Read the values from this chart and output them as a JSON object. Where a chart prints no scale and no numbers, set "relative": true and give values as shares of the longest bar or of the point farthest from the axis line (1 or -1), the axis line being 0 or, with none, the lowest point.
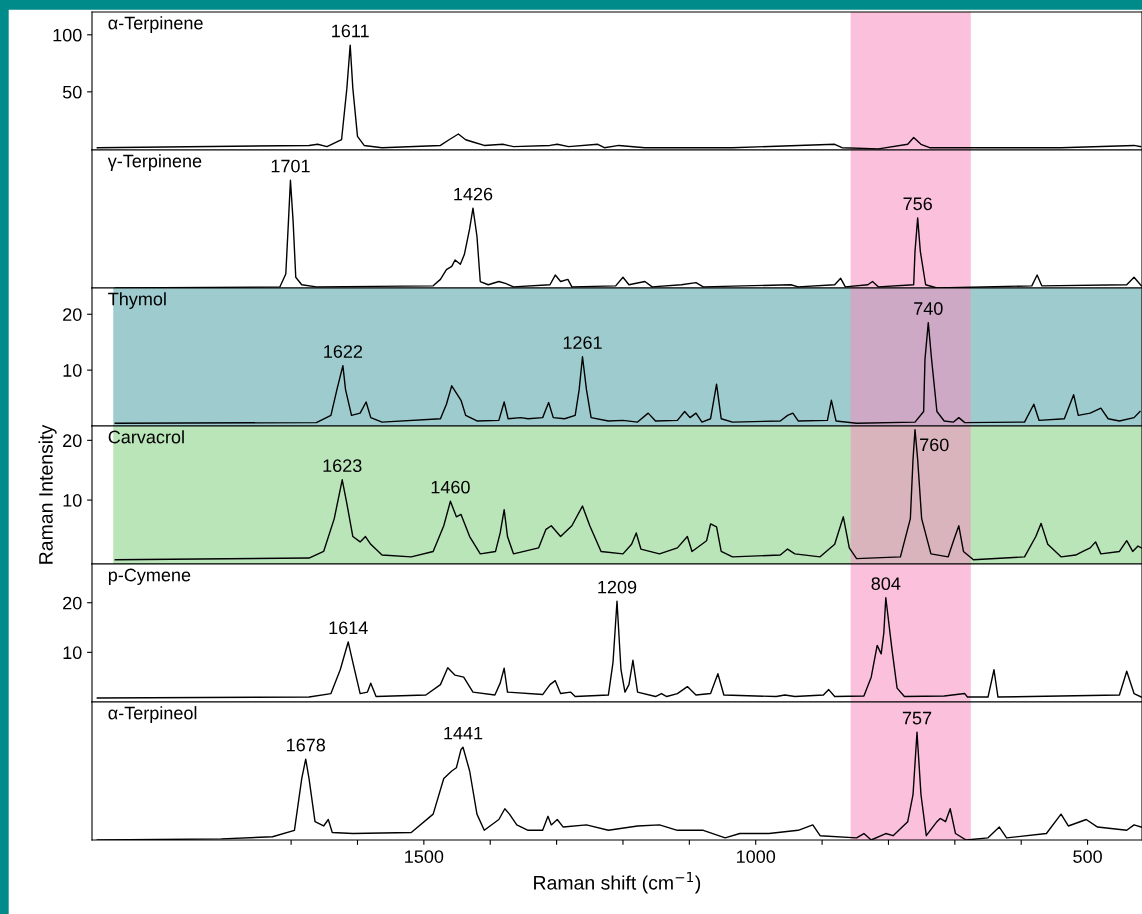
{
  "chart_data": [
    {
      "type": "line",
      "xlim": [
        2000,
        418
      ],
      "ylim": [
        -1,
        120
      ],
      "yticks": [
        50,
        100
      ],
      "tick_labels": "y",
      "series": [
        {
          "name": "α-Terpinene",
          "color": "#000000",
          "x": [
            1992,
            1673,
            1660,
            1646,
            1624,
            1616,
            1611,
            1607,
            1600,
            1590,
            1563,
            1475,
            1462,
            1448,
            1437,
            1426,
            1409,
            1381,
            1365,
            1310,
            1299,
            1282,
            1238,
            1228,
            1206,
            1167,
            1035,
            881,
            870,
            815,
            771,
            762,
            751,
            738,
            650,
            540,
            430,
            420
          ],
          "values": [
            1,
            3,
            4,
            2,
            8,
            53,
            91,
            53,
            11,
            3,
            1,
            3,
            8,
            13,
            8,
            6,
            3,
            4,
            2,
            3,
            4,
            2,
            4,
            1,
            3,
            1,
            1,
            4,
            1,
            0,
            4,
            10,
            4,
            1,
            1,
            1,
            3,
            2
          ]
        }
      ],
      "annotations": [
        {
          "text": "1611",
          "x": 1611,
          "y": 91
        }
      ],
      "bands": [
        {
          "axis": "x",
          "from": 857,
          "to": 676,
          "color": "#f58cbf"
        }
      ]
    },
    {
      "type": "line",
      "relative": true,
      "xlim": [
        2000,
        418
      ],
      "tick_labels": false,
      "series": [
        {
          "name": "γ-Terpinene",
          "color": "#000000",
          "x": [
            1965,
            1717,
            1708,
            1704,
            1701,
            1697,
            1693,
            1684,
            1662,
            1486,
            1475,
            1466,
            1458,
            1453,
            1445,
            1439,
            1431,
            1426,
            1420,
            1415,
            1403,
            1387,
            1376,
            1365,
            1310,
            1302,
            1294,
            1283,
            1277,
            1211,
            1200,
            1191,
            1167,
            1156,
            1112,
            1090,
            1079,
            947,
            936,
            881,
            872,
            865,
            831,
            824,
            815,
            762,
            760,
            756,
            752,
            744,
            727,
            584,
            576,
            569,
            441,
            430,
            419
          ],
          "values": [
            0,
            0.01,
            0.13,
            0.62,
            1,
            0.62,
            0.1,
            0.03,
            0.01,
            0.02,
            0.08,
            0.17,
            0.2,
            0.26,
            0.22,
            0.31,
            0.55,
            0.74,
            0.48,
            0.06,
            0.03,
            0.06,
            0.04,
            0.01,
            0.03,
            0.12,
            0.06,
            0.08,
            0.01,
            0.02,
            0.1,
            0.03,
            0.06,
            0.01,
            0.03,
            0.05,
            0.01,
            0.03,
            0.01,
            0.03,
            0.09,
            0.01,
            0.03,
            0.06,
            0.01,
            0.03,
            0.34,
            0.65,
            0.34,
            0.03,
            0,
            0.02,
            0.12,
            0.02,
            0.03,
            0.1,
            0.02
          ]
        }
      ],
      "annotations": [
        {
          "text": "1701",
          "x": 1701,
          "y": 1
        },
        {
          "text": "1426",
          "x": 1426,
          "y": 0.74
        },
        {
          "text": "756",
          "x": 756,
          "y": 0.65
        }
      ],
      "bands": [
        {
          "axis": "x",
          "from": 857,
          "to": 676,
          "color": "#f58cbf"
        }
      ]
    },
    {
      "type": "line",
      "xlim": [
        2000,
        418
      ],
      "ylim": [
        0,
        24.7
      ],
      "yticks": [
        10,
        20
      ],
      "tick_labels": "y",
      "series": [
        {
          "name": "Thymol",
          "color": "#000000",
          "x": [
            1965,
            1662,
            1640,
            1631,
            1622,
            1618,
            1609,
            1596,
            1587,
            1580,
            1563,
            1475,
            1466,
            1458,
            1451,
            1444,
            1437,
            1420,
            1387,
            1379,
            1373,
            1354,
            1343,
            1321,
            1312,
            1305,
            1288,
            1272,
            1266,
            1261,
            1255,
            1248,
            1222,
            1200,
            1178,
            1162,
            1151,
            1118,
            1107,
            1099,
            1090,
            1081,
            1068,
            1059,
            1052,
            1035,
            963,
            952,
            944,
            936,
            892,
            886,
            879,
            848,
            760,
            747,
            745,
            740,
            735,
            727,
            716,
            702,
            694,
            685,
            595,
            581,
            573,
            535,
            521,
            514,
            496,
            480,
            469,
            452,
            430,
            421
          ],
          "values": [
            0.5,
            0.6,
            1.9,
            6.5,
            10.8,
            6.5,
            1.9,
            2.3,
            4.3,
            1.5,
            0.7,
            1.3,
            3.9,
            7.2,
            5.9,
            4.6,
            1.9,
            0.9,
            1.0,
            4.3,
            1.3,
            1.5,
            1.3,
            1.5,
            4.2,
            1.5,
            1.3,
            1.9,
            6.5,
            12.4,
            6.5,
            1.5,
            0.9,
            1.0,
            0.7,
            2.3,
            0.9,
            1.0,
            2.6,
            1.5,
            2.3,
            0.7,
            1.3,
            7.5,
            1.3,
            0.7,
            0.9,
            1.9,
            2.3,
            0.9,
            1.0,
            4.6,
            0.9,
            0.5,
            0.7,
            2.6,
            11.9,
            18.5,
            11.9,
            2.6,
            0.9,
            0.7,
            1.5,
            0.6,
            0.7,
            3.9,
            1.0,
            1.3,
            5.6,
            1.9,
            2.3,
            3.2,
            1.3,
            0.9,
            1.5,
            2.6
          ]
        }
      ],
      "annotations": [
        {
          "text": "1622",
          "x": 1622,
          "y": 10.8
        },
        {
          "text": "1261",
          "x": 1261,
          "y": 12.4
        },
        {
          "text": "740",
          "x": 740,
          "y": 18.5
        }
      ],
      "bands": [
        {
          "axis": "x",
          "from": 1968,
          "to": 418,
          "color": "#4fa3a5"
        },
        {
          "axis": "x",
          "from": 857,
          "to": 676,
          "color": "#f58cbf"
        }
      ]
    },
    {
      "type": "line",
      "xlim": [
        2000,
        418
      ],
      "ylim": [
        -0.7,
        22.4
      ],
      "yticks": [
        10,
        20
      ],
      "tick_labels": "y",
      "ylabel": "Raman Intensity",
      "series": [
        {
          "name": "Carvacrol",
          "color": "#000000",
          "x": [
            1965,
            1673,
            1651,
            1635,
            1623,
            1616,
            1607,
            1596,
            1588,
            1580,
            1563,
            1519,
            1486,
            1470,
            1460,
            1451,
            1444,
            1431,
            1415,
            1392,
            1385,
            1379,
            1374,
            1365,
            1327,
            1316,
            1308,
            1294,
            1277,
            1261,
            1250,
            1233,
            1200,
            1187,
            1180,
            1173,
            1145,
            1118,
            1103,
            1096,
            1074,
            1068,
            1059,
            1052,
            1035,
            963,
            952,
            941,
            903,
            881,
            868,
            859,
            848,
            782,
            767,
            763,
            760,
            756,
            750,
            736,
            710,
            702,
            694,
            687,
            672,
            595,
            578,
            570,
            560,
            540,
            518,
            507,
            496,
            488,
            480,
            452,
            441,
            432,
            424,
            419
          ],
          "values": [
            0.0,
            0.3,
            1.4,
            6.9,
            13.4,
            9.4,
            3.9,
            3.0,
            3.9,
            2.6,
            0.8,
            0.5,
            1.4,
            5.7,
            9.8,
            7.2,
            7.6,
            3.9,
            1.0,
            1.4,
            4.5,
            8.4,
            3.9,
            1.0,
            2.0,
            5.1,
            5.7,
            3.9,
            5.7,
            9.0,
            5.7,
            1.4,
            1.0,
            2.6,
            4.5,
            1.8,
            1.0,
            2.0,
            3.9,
            1.4,
            3.2,
            6.0,
            5.5,
            1.4,
            0.5,
            0.8,
            1.8,
            1.0,
            0.5,
            2.6,
            7.2,
            2.0,
            0.2,
            0.5,
            6.9,
            16.8,
            21.8,
            16.8,
            6.9,
            1.0,
            0.5,
            3.2,
            5.7,
            1.4,
            0.0,
            0.5,
            3.9,
            6.1,
            2.6,
            0.5,
            0.8,
            1.4,
            2.0,
            3.0,
            1.0,
            1.4,
            3.2,
            1.4,
            2.3,
            2.0
          ]
        }
      ],
      "annotations": [
        {
          "text": "1623",
          "x": 1623,
          "y": 13.4
        },
        {
          "text": "1460",
          "x": 1460,
          "y": 9.8
        },
        {
          "text": "760",
          "x": 760,
          "y": 21.8
        }
      ],
      "bands": [
        {
          "axis": "x",
          "from": 1968,
          "to": 418,
          "color": "#7fd07f"
        },
        {
          "axis": "x",
          "from": 857,
          "to": 676,
          "color": "#f58cbf"
        }
      ]
    },
    {
      "type": "line",
      "xlim": [
        2000,
        418
      ],
      "ylim": [
        0,
        27.8
      ],
      "yticks": [
        10,
        20
      ],
      "tick_labels": "y",
      "series": [
        {
          "name": "p-Cymene",
          "color": "#000000",
          "x": [
            1992,
            1673,
            1640,
            1626,
            1614,
            1607,
            1596,
            1585,
            1580,
            1572,
            1497,
            1475,
            1464,
            1453,
            1440,
            1426,
            1393,
            1385,
            1379,
            1374,
            1321,
            1310,
            1302,
            1294,
            1279,
            1272,
            1222,
            1215,
            1209,
            1203,
            1197,
            1191,
            1185,
            1178,
            1151,
            1142,
            1134,
            1118,
            1103,
            1090,
            1068,
            1057,
            1048,
            969,
            956,
            941,
            898,
            890,
            881,
            837,
            826,
            817,
            811,
            807,
            804,
            795,
            787,
            776,
            716,
            685,
            681,
            650,
            641,
            635,
            452,
            441,
            430,
            419
          ],
          "values": [
            0.8,
            1.0,
            1.7,
            6.5,
            12.1,
            8.0,
            1.7,
            2.0,
            3.8,
            1.1,
            1.4,
            3.5,
            6.9,
            5.4,
            5.0,
            2.0,
            1.4,
            3.8,
            6.8,
            2.0,
            1.5,
            3.5,
            4.3,
            1.7,
            2.0,
            1.1,
            1.4,
            8.0,
            20.3,
            6.5,
            2.0,
            3.5,
            8.4,
            2.0,
            1.1,
            1.7,
            1.1,
            1.7,
            3.1,
            1.4,
            1.7,
            5.7,
            1.4,
            1.1,
            1.4,
            1.1,
            1.4,
            2.5,
            1.1,
            1.2,
            5.0,
            11.4,
            9.7,
            13.9,
            21.0,
            10.9,
            2.8,
            1.1,
            1.2,
            1.7,
            1.0,
            1.0,
            6.5,
            1.0,
            1.4,
            6.2,
            1.7,
            1.0
          ]
        }
      ],
      "annotations": [
        {
          "text": "1614",
          "x": 1614,
          "y": 12.1
        },
        {
          "text": "1209",
          "x": 1209,
          "y": 20.3
        },
        {
          "text": "804",
          "x": 804,
          "y": 21.0
        }
      ],
      "bands": [
        {
          "axis": "x",
          "from": 857,
          "to": 676,
          "color": "#f58cbf"
        }
      ]
    },
    {
      "type": "line",
      "relative": true,
      "xlim": [
        2000,
        418
      ],
      "xticks": [
        {
          "value": 1700,
          "label": null
        },
        {
          "value": 1600,
          "label": null
        },
        1500,
        {
          "value": 1400,
          "label": null
        },
        {
          "value": 1300,
          "label": null
        },
        {
          "value": 1200,
          "label": null
        },
        {
          "value": 1100,
          "label": null
        },
        1000,
        {
          "value": 900,
          "label": null
        },
        {
          "value": 800,
          "label": null
        },
        {
          "value": 700,
          "label": null
        },
        {
          "value": 600,
          "label": null
        },
        500
      ],
      "tick_labels": "x",
      "xlabel": "Raman shift (cm$^{−1}$)",
      "series": [
        {
          "name": "α-Terpineol",
          "color": "#000000",
          "x": [
            1992,
            1805,
            1728,
            1695,
            1684,
            1678,
            1673,
            1664,
            1651,
            1644,
            1638,
            1607,
            1519,
            1486,
            1470,
            1458,
            1451,
            1444,
            1441,
            1431,
            1420,
            1409,
            1387,
            1378,
            1371,
            1360,
            1343,
            1321,
            1313,
            1308,
            1299,
            1290,
            1255,
            1222,
            1178,
            1145,
            1118,
            1079,
            1046,
            1024,
            980,
            936,
            914,
            903,
            848,
            837,
            826,
            804,
            793,
            771,
            763,
            757,
            751,
            743,
            727,
            722,
            714,
            707,
            699,
            683,
            650,
            633,
            622,
            562,
            540,
            529,
            502,
            485,
            441,
            430,
            419
          ],
          "values": [
            0,
            0.01,
            0.03,
            0.09,
            0.57,
            0.75,
            0.57,
            0.17,
            0.13,
            0.19,
            0.07,
            0.06,
            0.07,
            0.24,
            0.57,
            0.64,
            0.67,
            0.84,
            0.86,
            0.64,
            0.24,
            0.09,
            0.19,
            0.29,
            0.24,
            0.14,
            0.09,
            0.09,
            0.22,
            0.14,
            0.19,
            0.12,
            0.14,
            0.09,
            0.13,
            0.14,
            0.09,
            0.09,
            0.02,
            0.06,
            0.06,
            0.09,
            0.14,
            0.04,
            0.02,
            0.06,
            0,
            0.06,
            0.04,
            0.17,
            0.42,
            1,
            0.42,
            0.04,
            0.17,
            0.2,
            0.17,
            0.29,
            0.06,
            0,
            0.02,
            0.12,
            0.02,
            0.06,
            0.24,
            0.13,
            0.19,
            0.12,
            0.09,
            0.14,
            0.12
          ]
        }
      ],
      "annotations": [
        {
          "text": "1678",
          "x": 1678,
          "y": 0.75
        },
        {
          "text": "1441",
          "x": 1441,
          "y": 0.86
        },
        {
          "text": "757",
          "x": 757,
          "y": 1
        }
      ],
      "bands": [
        {
          "axis": "x",
          "from": 857,
          "to": 676,
          "color": "#f58cbf"
        }
      ]
    }
  ]
}
